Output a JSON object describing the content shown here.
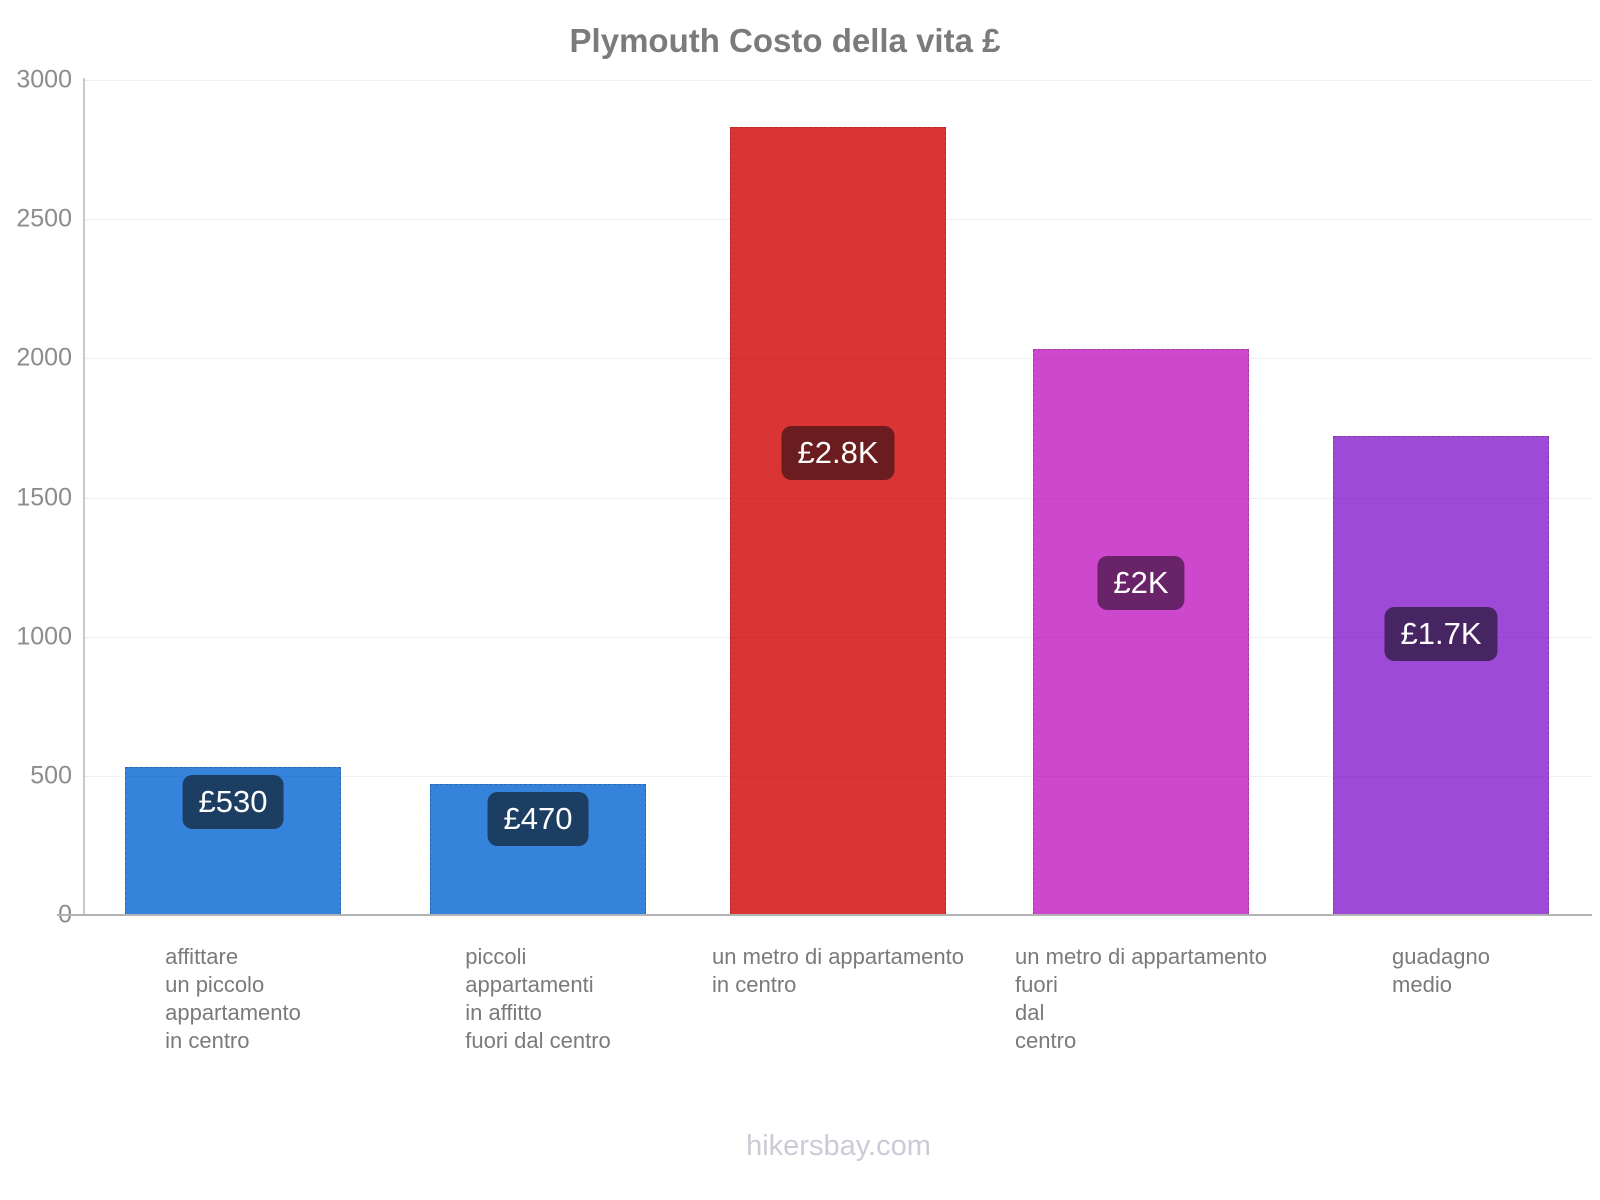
{
  "chart_data": {
    "type": "bar",
    "title": "Plymouth Costo della vita £",
    "categories": [
      "affittare\nun piccolo\nappartamento\nin centro",
      "piccoli\nappartamenti\nin affitto\nfuori dal centro",
      "un metro di appartamento\nin centro",
      "un metro di appartamento\nfuori\ndal\ncentro",
      "guadagno\nmedio"
    ],
    "values": [
      530,
      470,
      2830,
      2035,
      1720
    ],
    "value_labels": [
      "£530",
      "£470",
      "£2.8K",
      "£2K",
      "£1.7K"
    ],
    "bar_colors": [
      "#3583DB",
      "#3583DB",
      "#DB3434",
      "#CE48CE",
      "#9D4BD6"
    ],
    "badge_colors": [
      "#1D3E63",
      "#1D3E63",
      "#6B1C1E",
      "#692469",
      "#472562"
    ],
    "xlabel": "",
    "ylabel": "",
    "ylim": [
      0,
      3000
    ],
    "yticks": [
      0,
      500,
      1000,
      1500,
      2000,
      2500,
      3000
    ],
    "legend": "none",
    "grid": "horizontal-dotted",
    "footer": "hikersbay.com"
  }
}
